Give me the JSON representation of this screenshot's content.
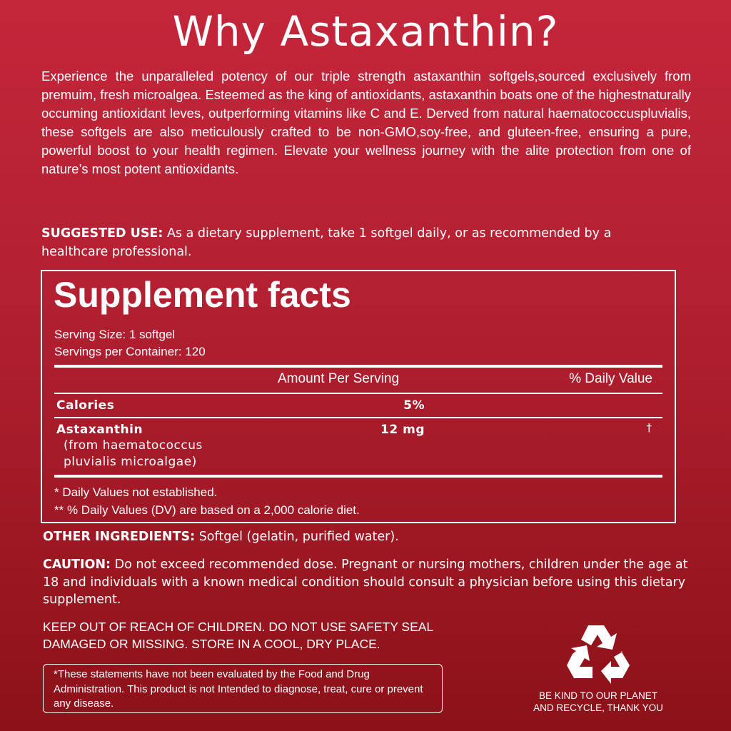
{
  "title": "Why Astaxanthin?",
  "intro": "Experience  the unparalleled potency of our triple strength astaxanthin softgels,sourced exclusively from premuim, fresh microalgea. Esteemed as the king of antioxidants, astaxanthin boats one of the highestnaturally occuming antioxidant leves, outperforming vitamins like C and E. Derved from natural haematococcuspluvialis, these softgels are also meticulously crafted to be non-GMO,soy-free, and gluteen-free, ensuring a pure, powerful boost to your health regimen. Elevate your wellness journey with the alite protection from one of nature’s most potent antioxidants.",
  "suggested_use": {
    "label": "SUGGESTED USE:",
    "text": " As a dietary supplement, take 1 softgel daily, or as recommended by a healthcare professional."
  },
  "facts": {
    "title": "Supplement facts",
    "serving_size": "Serving Size: 1 softgel",
    "servings_per_container": "Servings per Container: 120",
    "col_amount": "Amount Per Serving",
    "col_dv": "% Daily Value",
    "rows": [
      {
        "name": "Calories",
        "amount": "5%",
        "dv": ""
      },
      {
        "name": "Astaxanthin",
        "sub1": "(from haematococcus",
        "sub2": "pluvialis microalgae)",
        "amount": "12 mg",
        "dv": "†"
      }
    ],
    "note1": "* Daily Values not established.",
    "note2": "** % Daily Values (DV) are based on a 2,000 calorie diet."
  },
  "other_ingredients": {
    "label": "OTHER INGREDIENTS:",
    "text": " Softgel (gelatin, purified water)."
  },
  "caution": {
    "label": "CAUTION:",
    "text": " Do not exceed recommended dose. Pregnant or nursing mothers, children under the age at 18 and individuals with a known medical condition should consult a physician before using this dietary supplement."
  },
  "keep_out": "KEEP OUT OF REACH OF CHILDREN. DO NOT USE SAFETY SEAL DAMAGED OR MISSING. STORE IN A COOL, DRY PLACE.",
  "disclaimer": "*These statements have not been evaluated by the Food and Drug Administration. This product is not Intended to diagnose, treat, cure or prevent any disease.",
  "recycle": {
    "icon": "recycle-icon",
    "line1": "BE KIND TO OUR PLANET",
    "line2": "AND RECYCLE, THANK YOU"
  },
  "colors": {
    "bg_top": "#c4263a",
    "bg_bottom": "#8c1118",
    "text": "#ffffff"
  }
}
